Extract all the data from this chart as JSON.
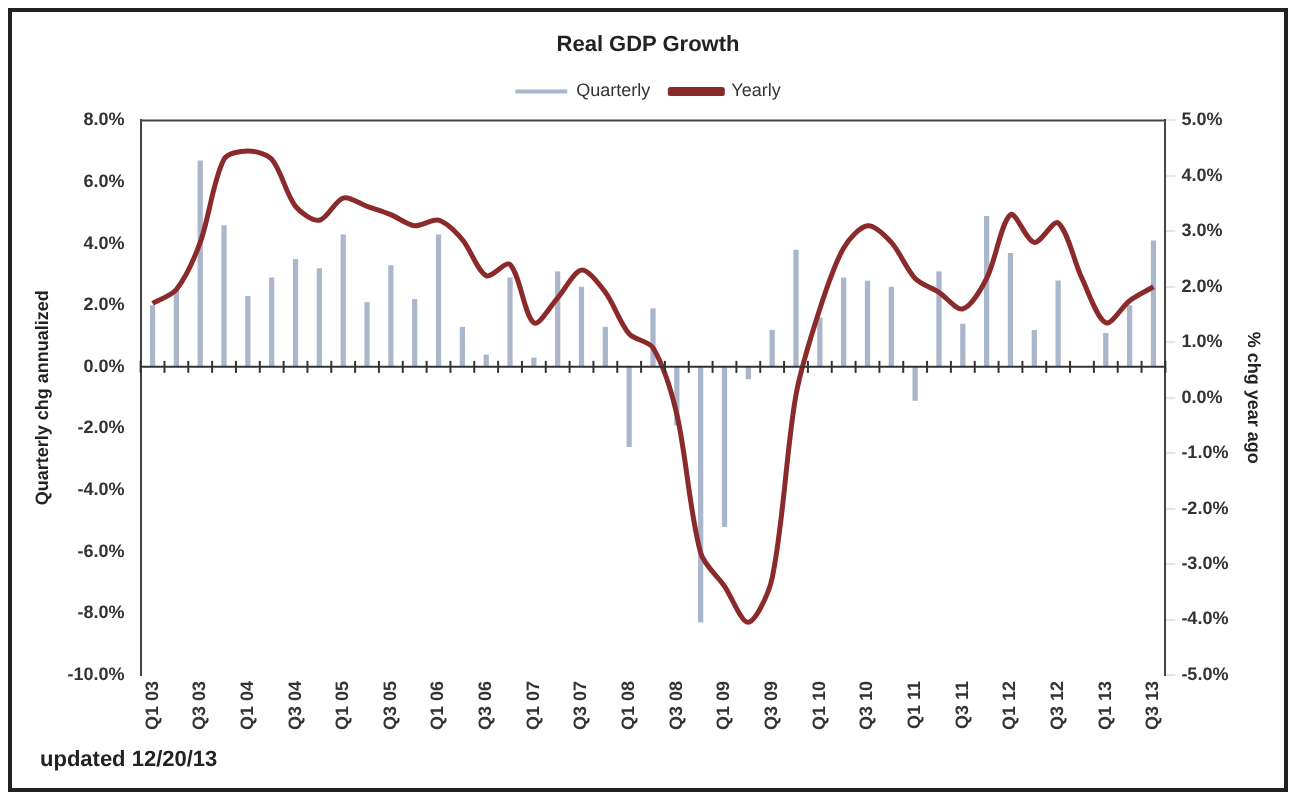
{
  "chart_data": {
    "type": "bar",
    "title": "Real GDP Growth",
    "ylabel": "Quarterly chg annualized",
    "y2label": "% chg year ago",
    "categories": [
      "Q1 03",
      null,
      "Q3 03",
      null,
      "Q1 04",
      null,
      "Q3 04",
      null,
      "Q1 05",
      null,
      "Q3 05",
      null,
      "Q1 06",
      null,
      "Q3 06",
      null,
      "Q1 07",
      null,
      "Q3 07",
      null,
      "Q1 08",
      null,
      "Q3 08",
      null,
      "Q1 09",
      null,
      "Q3 09",
      null,
      "Q1 10",
      null,
      "Q3 10",
      null,
      "Q1 11",
      null,
      "Q3 11",
      null,
      "Q1 12",
      null,
      "Q3 12",
      null,
      "Q1 13",
      null,
      "Q3 13"
    ],
    "series": [
      {
        "name": "Quarterly",
        "axis": "y",
        "color": "#aab6cc",
        "values": [
          2.0,
          2.5,
          6.7,
          4.6,
          2.3,
          2.9,
          3.5,
          3.2,
          4.3,
          2.1,
          3.3,
          2.2,
          4.3,
          1.3,
          0.4,
          2.9,
          0.3,
          3.1,
          2.6,
          1.3,
          -2.6,
          1.9,
          -1.9,
          -8.3,
          -5.2,
          -0.4,
          1.2,
          3.8,
          1.6,
          2.9,
          2.8,
          2.6,
          -1.1,
          3.1,
          1.4,
          4.9,
          3.7,
          1.2,
          2.8,
          null,
          1.1,
          2.0,
          4.1
        ]
      },
      {
        "name": "Yearly",
        "type": "line",
        "axis": "y2",
        "color": "#8b2a2a",
        "values": [
          1.7,
          1.95,
          2.8,
          4.3,
          4.45,
          4.3,
          3.45,
          3.2,
          3.6,
          3.45,
          3.3,
          3.1,
          3.2,
          2.85,
          2.2,
          2.4,
          1.35,
          1.8,
          2.3,
          1.9,
          1.15,
          0.9,
          -0.3,
          -2.8,
          -3.4,
          -4.05,
          -3.25,
          0.05,
          1.6,
          2.7,
          3.1,
          2.8,
          2.15,
          1.9,
          1.6,
          2.15,
          3.3,
          2.8,
          3.15,
          2.15,
          1.35,
          1.75,
          2.0
        ]
      }
    ],
    "ylim": [
      -10,
      8
    ],
    "yticks": [
      {
        "value": -10,
        "label": "-10.0%"
      },
      {
        "value": -8,
        "label": "-8.0%"
      },
      {
        "value": -6,
        "label": "-6.0%"
      },
      {
        "value": -4,
        "label": "-4.0%"
      },
      {
        "value": -2,
        "label": "-2.0%"
      },
      {
        "value": 0,
        "label": "0.0%"
      },
      {
        "value": 2,
        "label": "2.0%"
      },
      {
        "value": 4,
        "label": "4.0%"
      },
      {
        "value": 6,
        "label": "6.0%"
      },
      {
        "value": 8,
        "label": "8.0%"
      }
    ],
    "y2lim": [
      -5,
      5
    ],
    "y2ticks": [
      {
        "value": -5,
        "label": "-5.0%"
      },
      {
        "value": -4,
        "label": "-4.0%"
      },
      {
        "value": -3,
        "label": "-3.0%"
      },
      {
        "value": -2,
        "label": "-2.0%"
      },
      {
        "value": -1,
        "label": "-1.0%"
      },
      {
        "value": 0,
        "label": "0.0%"
      },
      {
        "value": 1,
        "label": "1.0%"
      },
      {
        "value": 2,
        "label": "2.0%"
      },
      {
        "value": 3,
        "label": "3.0%"
      },
      {
        "value": 4,
        "label": "4.0%"
      },
      {
        "value": 5,
        "label": "5.0%"
      }
    ],
    "ref_lines": [
      {
        "axis": "y",
        "value": 0,
        "color": "#333333"
      }
    ],
    "legend": "top",
    "annotations": [
      "updated 12/20/13"
    ]
  }
}
